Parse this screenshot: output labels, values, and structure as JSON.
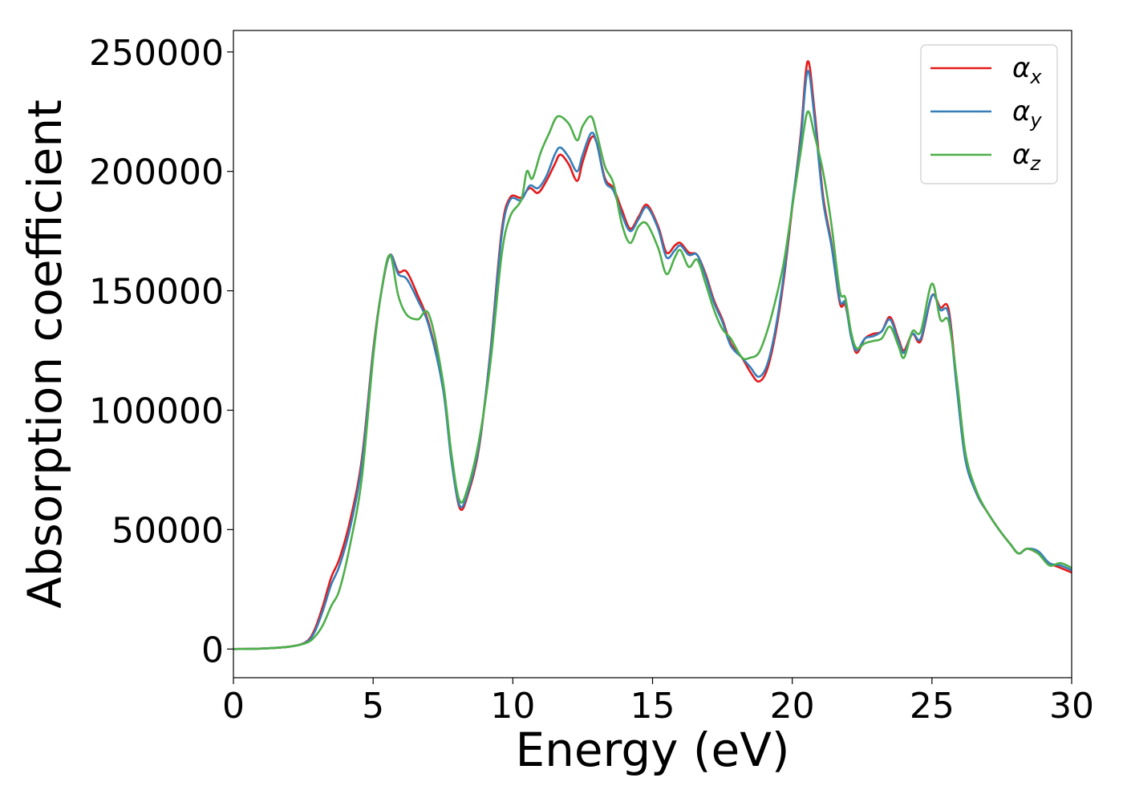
{
  "chart_data": {
    "type": "line",
    "title": "",
    "xlabel": "Energy (eV)",
    "ylabel": "Absorption coefficient",
    "xlim": [
      0,
      30
    ],
    "ylim": [
      -12000,
      259000
    ],
    "xticks": [
      0,
      5,
      10,
      15,
      20,
      25,
      30
    ],
    "xtick_labels": [
      "0",
      "5",
      "10",
      "15",
      "20",
      "25",
      "30"
    ],
    "yticks": [
      0,
      50000,
      100000,
      150000,
      200000,
      250000
    ],
    "ytick_labels": [
      "0",
      "50000",
      "100000",
      "150000",
      "200000",
      "250000"
    ],
    "grid": false,
    "legend_position": "top-right",
    "series": [
      {
        "name": "α",
        "subscript": "x",
        "color": "#e41a1c",
        "points": [
          [
            0,
            0
          ],
          [
            1,
            200
          ],
          [
            2,
            1000
          ],
          [
            2.6,
            3000
          ],
          [
            2.9,
            8000
          ],
          [
            3.2,
            18000
          ],
          [
            3.5,
            30000
          ],
          [
            3.8,
            38000
          ],
          [
            4.2,
            55000
          ],
          [
            4.6,
            80000
          ],
          [
            5.0,
            125000
          ],
          [
            5.3,
            150000
          ],
          [
            5.6,
            165000
          ],
          [
            5.9,
            158000
          ],
          [
            6.2,
            158000
          ],
          [
            6.6,
            148000
          ],
          [
            7.0,
            136000
          ],
          [
            7.5,
            110000
          ],
          [
            7.8,
            80000
          ],
          [
            8.1,
            59000
          ],
          [
            8.4,
            65000
          ],
          [
            8.8,
            85000
          ],
          [
            9.2,
            125000
          ],
          [
            9.6,
            175000
          ],
          [
            9.9,
            189000
          ],
          [
            10.3,
            189000
          ],
          [
            10.6,
            193000
          ],
          [
            10.9,
            191000
          ],
          [
            11.2,
            196000
          ],
          [
            11.5,
            203000
          ],
          [
            11.7,
            207000
          ],
          [
            12.0,
            203000
          ],
          [
            12.3,
            196000
          ],
          [
            12.5,
            204000
          ],
          [
            12.8,
            214000
          ],
          [
            13.0,
            212000
          ],
          [
            13.3,
            197000
          ],
          [
            13.6,
            193000
          ],
          [
            13.9,
            184000
          ],
          [
            14.2,
            176000
          ],
          [
            14.5,
            181000
          ],
          [
            14.8,
            186000
          ],
          [
            15.2,
            177000
          ],
          [
            15.5,
            166000
          ],
          [
            15.8,
            169000
          ],
          [
            16.0,
            170000
          ],
          [
            16.3,
            166000
          ],
          [
            16.6,
            165000
          ],
          [
            16.9,
            157000
          ],
          [
            17.2,
            146000
          ],
          [
            17.5,
            138000
          ],
          [
            17.8,
            128000
          ],
          [
            18.2,
            122000
          ],
          [
            18.5,
            116000
          ],
          [
            18.8,
            112000
          ],
          [
            19.1,
            117000
          ],
          [
            19.4,
            132000
          ],
          [
            19.7,
            155000
          ],
          [
            20.0,
            185000
          ],
          [
            20.3,
            215000
          ],
          [
            20.55,
            246000
          ],
          [
            20.8,
            225000
          ],
          [
            21.1,
            190000
          ],
          [
            21.4,
            170000
          ],
          [
            21.7,
            145000
          ],
          [
            21.9,
            144000
          ],
          [
            22.1,
            132000
          ],
          [
            22.3,
            124000
          ],
          [
            22.6,
            130000
          ],
          [
            22.9,
            132000
          ],
          [
            23.2,
            133000
          ],
          [
            23.5,
            139000
          ],
          [
            23.8,
            130000
          ],
          [
            24.0,
            125000
          ],
          [
            24.3,
            132000
          ],
          [
            24.6,
            129000
          ],
          [
            25.0,
            148000
          ],
          [
            25.3,
            143000
          ],
          [
            25.6,
            142000
          ],
          [
            25.9,
            110000
          ],
          [
            26.2,
            80000
          ],
          [
            26.6,
            65000
          ],
          [
            27.0,
            57000
          ],
          [
            27.4,
            50000
          ],
          [
            27.8,
            44000
          ],
          [
            28.1,
            40000
          ],
          [
            28.4,
            42000
          ],
          [
            28.8,
            40000
          ],
          [
            29.2,
            36000
          ],
          [
            29.6,
            34000
          ],
          [
            30,
            32000
          ]
        ]
      },
      {
        "name": "α",
        "subscript": "y",
        "color": "#377eb8",
        "points": [
          [
            0,
            0
          ],
          [
            1,
            200
          ],
          [
            2,
            1000
          ],
          [
            2.6,
            2800
          ],
          [
            2.9,
            7000
          ],
          [
            3.2,
            16000
          ],
          [
            3.5,
            27000
          ],
          [
            3.8,
            35000
          ],
          [
            4.2,
            52000
          ],
          [
            4.6,
            78000
          ],
          [
            5.0,
            124000
          ],
          [
            5.3,
            150000
          ],
          [
            5.6,
            165000
          ],
          [
            5.9,
            157000
          ],
          [
            6.2,
            155000
          ],
          [
            6.6,
            146000
          ],
          [
            7.0,
            135000
          ],
          [
            7.5,
            109000
          ],
          [
            7.8,
            79000
          ],
          [
            8.1,
            60000
          ],
          [
            8.4,
            66000
          ],
          [
            8.8,
            86000
          ],
          [
            9.2,
            124000
          ],
          [
            9.6,
            173000
          ],
          [
            9.9,
            188000
          ],
          [
            10.3,
            188000
          ],
          [
            10.6,
            194000
          ],
          [
            10.9,
            193000
          ],
          [
            11.2,
            198000
          ],
          [
            11.5,
            207000
          ],
          [
            11.7,
            210000
          ],
          [
            12.0,
            206000
          ],
          [
            12.3,
            200000
          ],
          [
            12.5,
            207000
          ],
          [
            12.8,
            216000
          ],
          [
            13.0,
            212000
          ],
          [
            13.3,
            196000
          ],
          [
            13.6,
            192000
          ],
          [
            13.9,
            182000
          ],
          [
            14.2,
            175000
          ],
          [
            14.5,
            180000
          ],
          [
            14.8,
            185000
          ],
          [
            15.2,
            176000
          ],
          [
            15.5,
            164000
          ],
          [
            15.8,
            167000
          ],
          [
            16.0,
            169000
          ],
          [
            16.3,
            165000
          ],
          [
            16.6,
            165000
          ],
          [
            16.9,
            156000
          ],
          [
            17.2,
            145000
          ],
          [
            17.5,
            137000
          ],
          [
            17.8,
            127000
          ],
          [
            18.2,
            122000
          ],
          [
            18.5,
            118000
          ],
          [
            18.8,
            114000
          ],
          [
            19.1,
            119000
          ],
          [
            19.4,
            134000
          ],
          [
            19.7,
            157000
          ],
          [
            20.0,
            186000
          ],
          [
            20.3,
            213000
          ],
          [
            20.55,
            242000
          ],
          [
            20.8,
            222000
          ],
          [
            21.1,
            188000
          ],
          [
            21.4,
            169000
          ],
          [
            21.7,
            146000
          ],
          [
            21.9,
            145000
          ],
          [
            22.1,
            131000
          ],
          [
            22.3,
            125000
          ],
          [
            22.6,
            130000
          ],
          [
            22.9,
            131000
          ],
          [
            23.2,
            133000
          ],
          [
            23.5,
            138000
          ],
          [
            23.8,
            129000
          ],
          [
            24.0,
            124000
          ],
          [
            24.3,
            132000
          ],
          [
            24.6,
            130000
          ],
          [
            25.0,
            148000
          ],
          [
            25.3,
            142000
          ],
          [
            25.6,
            140000
          ],
          [
            25.9,
            108000
          ],
          [
            26.2,
            79000
          ],
          [
            26.6,
            65000
          ],
          [
            27.0,
            57000
          ],
          [
            27.4,
            50000
          ],
          [
            27.8,
            44000
          ],
          [
            28.1,
            40000
          ],
          [
            28.4,
            42000
          ],
          [
            28.8,
            41000
          ],
          [
            29.2,
            36000
          ],
          [
            29.6,
            35000
          ],
          [
            30,
            33000
          ]
        ]
      },
      {
        "name": "α",
        "subscript": "z",
        "color": "#4daf4a",
        "points": [
          [
            0,
            0
          ],
          [
            1,
            200
          ],
          [
            2,
            1000
          ],
          [
            2.6,
            2500
          ],
          [
            2.9,
            5000
          ],
          [
            3.2,
            10000
          ],
          [
            3.5,
            18000
          ],
          [
            3.8,
            25000
          ],
          [
            4.2,
            45000
          ],
          [
            4.6,
            72000
          ],
          [
            5.0,
            122000
          ],
          [
            5.3,
            150000
          ],
          [
            5.6,
            165000
          ],
          [
            5.9,
            148000
          ],
          [
            6.2,
            140000
          ],
          [
            6.6,
            138000
          ],
          [
            7.0,
            140000
          ],
          [
            7.5,
            112000
          ],
          [
            7.8,
            82000
          ],
          [
            8.1,
            62000
          ],
          [
            8.4,
            68000
          ],
          [
            8.8,
            88000
          ],
          [
            9.2,
            120000
          ],
          [
            9.6,
            165000
          ],
          [
            9.9,
            181000
          ],
          [
            10.3,
            188000
          ],
          [
            10.5,
            200000
          ],
          [
            10.7,
            197000
          ],
          [
            11.0,
            208000
          ],
          [
            11.3,
            216000
          ],
          [
            11.6,
            223000
          ],
          [
            12.0,
            220000
          ],
          [
            12.3,
            213000
          ],
          [
            12.5,
            219000
          ],
          [
            12.8,
            223000
          ],
          [
            13.0,
            216000
          ],
          [
            13.3,
            202000
          ],
          [
            13.6,
            195000
          ],
          [
            13.9,
            178000
          ],
          [
            14.2,
            170000
          ],
          [
            14.5,
            177000
          ],
          [
            14.8,
            178000
          ],
          [
            15.2,
            168000
          ],
          [
            15.5,
            157000
          ],
          [
            15.8,
            164000
          ],
          [
            16.0,
            167000
          ],
          [
            16.3,
            160000
          ],
          [
            16.6,
            163000
          ],
          [
            16.9,
            153000
          ],
          [
            17.2,
            142000
          ],
          [
            17.5,
            134000
          ],
          [
            17.8,
            130000
          ],
          [
            18.2,
            122000
          ],
          [
            18.5,
            122000
          ],
          [
            18.8,
            124000
          ],
          [
            19.1,
            133000
          ],
          [
            19.4,
            146000
          ],
          [
            19.7,
            162000
          ],
          [
            20.0,
            185000
          ],
          [
            20.3,
            208000
          ],
          [
            20.55,
            225000
          ],
          [
            20.8,
            215000
          ],
          [
            21.1,
            200000
          ],
          [
            21.4,
            178000
          ],
          [
            21.7,
            150000
          ],
          [
            21.9,
            147000
          ],
          [
            22.1,
            133000
          ],
          [
            22.3,
            126000
          ],
          [
            22.6,
            128000
          ],
          [
            22.9,
            129000
          ],
          [
            23.2,
            130000
          ],
          [
            23.5,
            135000
          ],
          [
            23.8,
            127000
          ],
          [
            24.0,
            122000
          ],
          [
            24.3,
            133000
          ],
          [
            24.6,
            133000
          ],
          [
            25.0,
            153000
          ],
          [
            25.3,
            138000
          ],
          [
            25.6,
            137000
          ],
          [
            25.9,
            112000
          ],
          [
            26.2,
            82000
          ],
          [
            26.6,
            66000
          ],
          [
            27.0,
            57000
          ],
          [
            27.4,
            50000
          ],
          [
            27.8,
            44000
          ],
          [
            28.1,
            40000
          ],
          [
            28.4,
            42000
          ],
          [
            28.8,
            40000
          ],
          [
            29.2,
            35000
          ],
          [
            29.6,
            36000
          ],
          [
            30,
            34000
          ]
        ]
      }
    ]
  }
}
